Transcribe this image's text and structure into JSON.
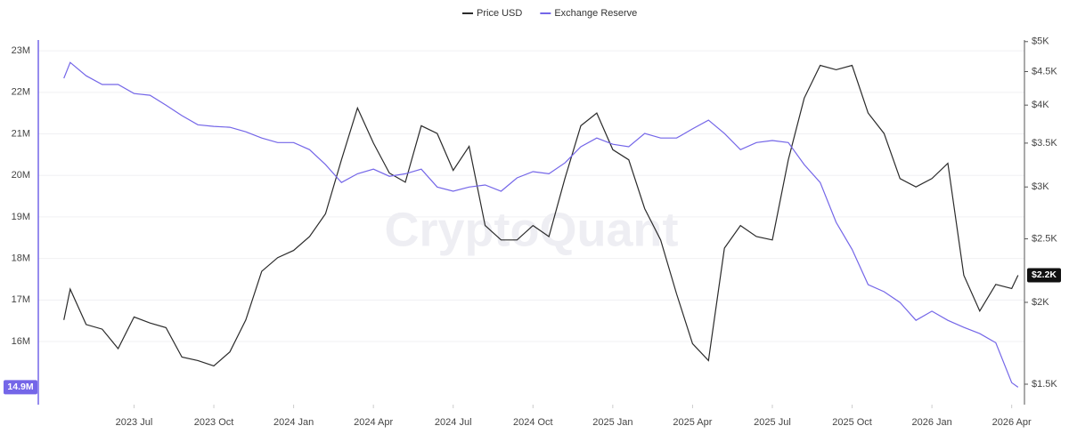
{
  "chart_data": {
    "type": "line",
    "watermark": "CryptoQuant",
    "legend": "top",
    "grid": true,
    "y2log": true,
    "x": [
      2023.28,
      2023.3,
      2023.35,
      2023.4,
      2023.45,
      2023.5,
      2023.55,
      2023.6,
      2023.65,
      2023.7,
      2023.75,
      2023.8,
      2023.85,
      2023.9,
      2023.95,
      2024.0,
      2024.05,
      2024.1,
      2024.15,
      2024.2,
      2024.25,
      2024.3,
      2024.35,
      2024.4,
      2024.45,
      2024.5,
      2024.55,
      2024.6,
      2024.65,
      2024.7,
      2024.75,
      2024.8,
      2024.85,
      2024.9,
      2024.95,
      2025.0,
      2025.05,
      2025.1,
      2025.15,
      2025.2,
      2025.25,
      2025.3,
      2025.35,
      2025.4,
      2025.45,
      2025.5,
      2025.55,
      2025.6,
      2025.65,
      2025.7,
      2025.75,
      2025.8,
      2025.85,
      2025.9,
      2025.95,
      2026.0,
      2026.05,
      2026.1,
      2026.15,
      2026.2,
      2026.25,
      2026.27
    ],
    "xlim": [
      2023.2,
      2026.29
    ],
    "xticks": [
      {
        "value": 2023.5,
        "label": "2023 Jul"
      },
      {
        "value": 2023.75,
        "label": "2023 Oct"
      },
      {
        "value": 2024.0,
        "label": "2024 Jan"
      },
      {
        "value": 2024.25,
        "label": "2024 Apr"
      },
      {
        "value": 2024.5,
        "label": "2024 Jul"
      },
      {
        "value": 2024.75,
        "label": "2024 Oct"
      },
      {
        "value": 2025.0,
        "label": "2025 Jan"
      },
      {
        "value": 2025.25,
        "label": "2025 Apr"
      },
      {
        "value": 2025.5,
        "label": "2025 Jul"
      },
      {
        "value": 2025.75,
        "label": "2025 Oct"
      },
      {
        "value": 2026.0,
        "label": "2026 Jan"
      },
      {
        "value": 2026.25,
        "label": "2026 Apr"
      }
    ],
    "ylim": [
      14.48,
      23.26
    ],
    "yticks": [
      {
        "value": 16,
        "label": "16M"
      },
      {
        "value": 17,
        "label": "17M"
      },
      {
        "value": 18,
        "label": "18M"
      },
      {
        "value": 19,
        "label": "19M"
      },
      {
        "value": 20,
        "label": "20M"
      },
      {
        "value": 21,
        "label": "21M"
      },
      {
        "value": 22,
        "label": "22M"
      },
      {
        "value": 23,
        "label": "23M"
      }
    ],
    "y2lim": [
      1396,
      5028
    ],
    "y2ticks": [
      {
        "value": 1500,
        "label": "$1.5K"
      },
      {
        "value": 2000,
        "label": "$2K"
      },
      {
        "value": 2500,
        "label": "$2.5K"
      },
      {
        "value": 3000,
        "label": "$3K"
      },
      {
        "value": 3500,
        "label": "$3.5K"
      },
      {
        "value": 4000,
        "label": "$4K"
      },
      {
        "value": 4500,
        "label": "$4.5K"
      },
      {
        "value": 5000,
        "label": "$5K"
      }
    ],
    "series": [
      {
        "name": "Price USD",
        "color": "#2b2b2b",
        "axis": "y2",
        "last_label": "$2.2K",
        "values": [
          1880,
          2095,
          1850,
          1820,
          1700,
          1900,
          1860,
          1830,
          1650,
          1630,
          1600,
          1680,
          1880,
          2230,
          2340,
          2400,
          2520,
          2730,
          3300,
          3960,
          3500,
          3150,
          3050,
          3720,
          3620,
          3180,
          3460,
          2620,
          2490,
          2490,
          2620,
          2520,
          3090,
          3720,
          3890,
          3420,
          3300,
          2780,
          2490,
          2060,
          1730,
          1630,
          2420,
          2620,
          2520,
          2490,
          3300,
          4100,
          4600,
          4530,
          4600,
          3890,
          3620,
          3090,
          3000,
          3090,
          3260,
          2200,
          1940,
          2130,
          2100,
          2200
        ]
      },
      {
        "name": "Exchange Reserve",
        "color": "#7466e8",
        "axis": "y",
        "last_label": "14.9M",
        "values": [
          22.34,
          22.72,
          22.4,
          22.19,
          22.19,
          21.97,
          21.93,
          21.69,
          21.44,
          21.22,
          21.18,
          21.16,
          21.05,
          20.9,
          20.79,
          20.79,
          20.62,
          20.26,
          19.83,
          20.04,
          20.15,
          19.98,
          20.04,
          20.15,
          19.72,
          19.62,
          19.72,
          19.77,
          19.62,
          19.94,
          20.09,
          20.04,
          20.3,
          20.69,
          20.9,
          20.75,
          20.69,
          21.01,
          20.9,
          20.9,
          21.12,
          21.33,
          21.01,
          20.62,
          20.79,
          20.84,
          20.79,
          20.26,
          19.83,
          18.87,
          18.22,
          17.37,
          17.2,
          16.94,
          16.51,
          16.73,
          16.51,
          16.34,
          16.19,
          15.97,
          15.01,
          14.9
        ]
      }
    ]
  }
}
